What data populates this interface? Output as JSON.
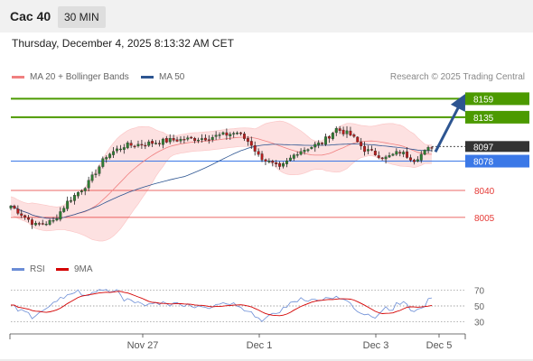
{
  "header": {
    "title": "Cac 40",
    "timeframe": "30 MIN"
  },
  "datetime": "Thursday, December 4, 2025 8:13:32 AM CET",
  "legend": {
    "bollinger": {
      "label": "MA 20 + Bollinger Bands",
      "color": "#f08080"
    },
    "ma50": {
      "label": "MA 50",
      "color": "#2d5591"
    },
    "rsi": {
      "label": "RSI",
      "color": "#6b8dd6"
    },
    "rsi_ma": {
      "label": "9MA",
      "color": "#d40000"
    }
  },
  "copyright": "Research © 2025 Trading Central",
  "chart_data": [
    {
      "type": "candlestick",
      "title": "",
      "x_tick_labels": [
        "Nov 27",
        "Dec 1",
        "Dec 3",
        "Dec 5"
      ],
      "ylim": [
        7965,
        8170
      ],
      "price_levels": [
        {
          "label": "8159",
          "value": 8159,
          "color": "#4c9a00",
          "kind": "resistance"
        },
        {
          "label": "8135",
          "value": 8135,
          "color": "#4c9a00",
          "kind": "resistance"
        },
        {
          "label": "8097",
          "value": 8097,
          "color": "#333333",
          "kind": "last"
        },
        {
          "label": "8078",
          "value": 8078,
          "color": "#3b78e7",
          "kind": "pivot"
        },
        {
          "label": "8040",
          "value": 8040,
          "color": "#e53935",
          "kind": "support"
        },
        {
          "label": "8005",
          "value": 8005,
          "color": "#e53935",
          "kind": "support"
        }
      ],
      "arrow": {
        "from": 8090,
        "to": 8156,
        "color": "#2d5591"
      }
    },
    {
      "type": "line",
      "title": "",
      "ylim": [
        20,
        80
      ],
      "y_ticks": [
        70,
        50,
        30
      ],
      "reference_lines": [
        70,
        50,
        30
      ],
      "series": [
        {
          "name": "RSI",
          "color": "#6b8dd6"
        },
        {
          "name": "9MA",
          "color": "#d40000"
        }
      ]
    }
  ]
}
